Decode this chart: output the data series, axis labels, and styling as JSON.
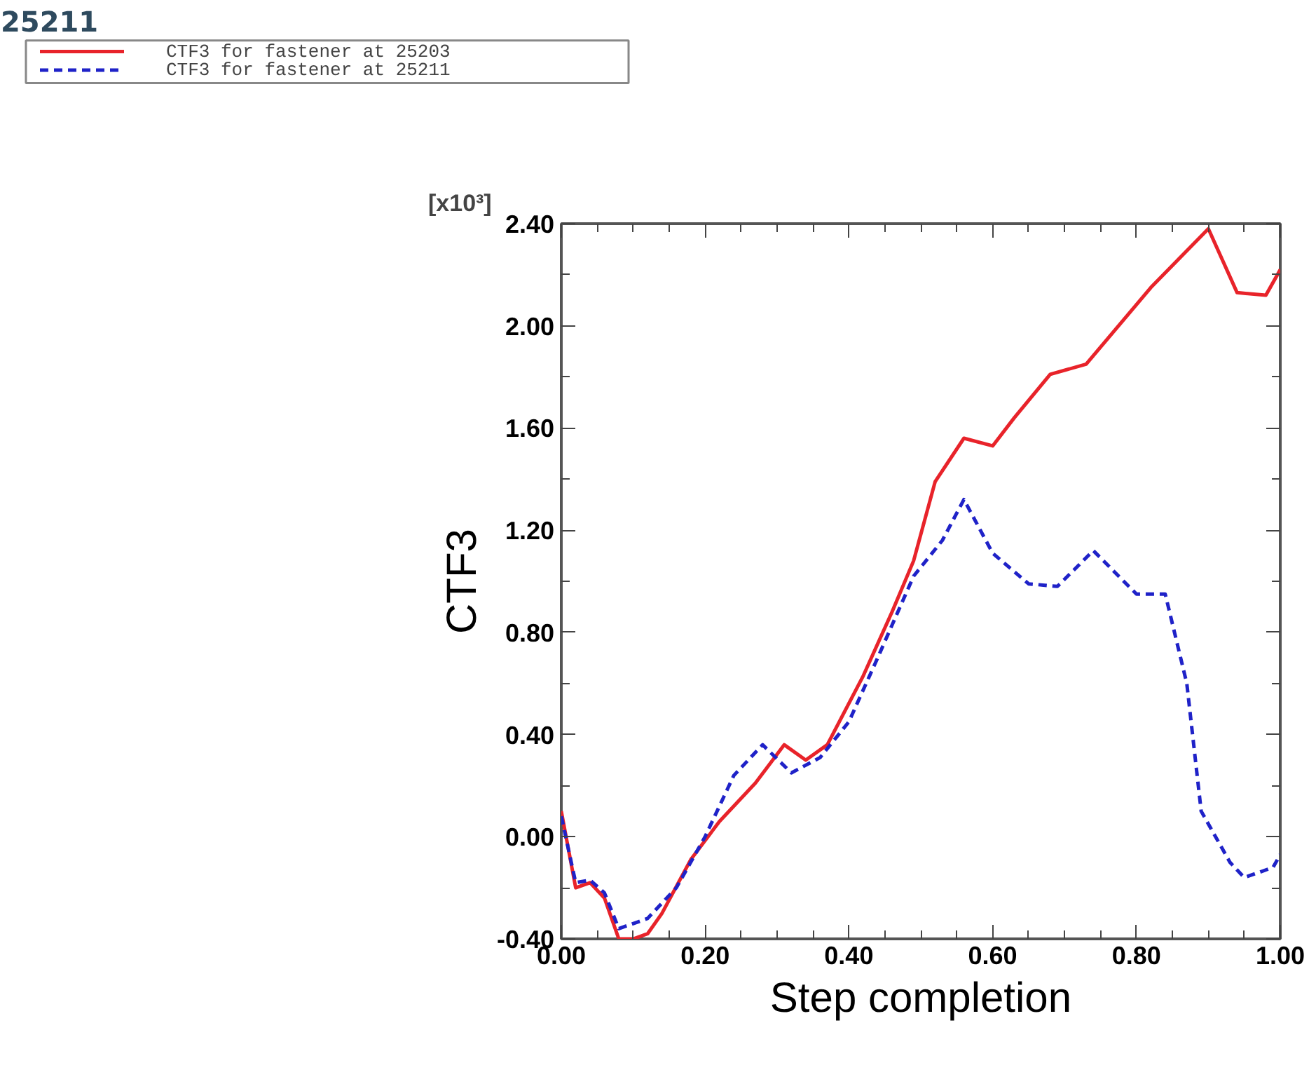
{
  "chart_data": {
    "type": "line",
    "title": "25211",
    "xlabel": "Step completion",
    "ylabel": "CTF3",
    "annotations": [
      "[x10³]"
    ],
    "xlim": [
      0,
      1
    ],
    "xticks": [
      {
        "value": 0,
        "label": "0.00"
      },
      {
        "value": 0.2,
        "label": "0.20"
      },
      {
        "value": 0.4,
        "label": "0.40"
      },
      {
        "value": 0.6,
        "label": "0.60"
      },
      {
        "value": 0.8,
        "label": "0.80"
      },
      {
        "value": 1.0,
        "label": "1.00"
      }
    ],
    "ylim": [
      -0.4,
      2.4
    ],
    "yticks": [
      {
        "value": -0.4,
        "label": "-0.40"
      },
      {
        "value": 0,
        "label": "0.00"
      },
      {
        "value": 0.4,
        "label": "0.40"
      },
      {
        "value": 0.8,
        "label": "0.80"
      },
      {
        "value": 1.2,
        "label": "1.20"
      },
      {
        "value": 1.6,
        "label": "1.60"
      },
      {
        "value": 2.0,
        "label": "2.00"
      },
      {
        "value": 2.4,
        "label": "2.40"
      }
    ],
    "grid": false,
    "legend": "top left",
    "series": [
      {
        "name": "CTF3 for fastener at 25203",
        "color": "#e8232a",
        "line_style": "solid",
        "x": [
          0.0,
          0.02,
          0.04,
          0.06,
          0.08,
          0.1,
          0.12,
          0.14,
          0.18,
          0.22,
          0.27,
          0.31,
          0.34,
          0.37,
          0.42,
          0.46,
          0.49,
          0.52,
          0.56,
          0.6,
          0.63,
          0.68,
          0.73,
          0.82,
          0.9,
          0.94,
          0.98,
          1.0
        ],
        "values": [
          0.1,
          -0.2,
          -0.18,
          -0.24,
          -0.4,
          -0.4,
          -0.38,
          -0.3,
          -0.09,
          0.06,
          0.21,
          0.36,
          0.3,
          0.36,
          0.63,
          0.88,
          1.08,
          1.39,
          1.56,
          1.53,
          1.64,
          1.81,
          1.85,
          2.15,
          2.38,
          2.13,
          2.12,
          2.22
        ]
      },
      {
        "name": "CTF3 for fastener at 25211",
        "color": "#1f22c8",
        "line_style": "dashed",
        "x": [
          0.0,
          0.02,
          0.04,
          0.06,
          0.08,
          0.12,
          0.16,
          0.2,
          0.24,
          0.28,
          0.32,
          0.36,
          0.4,
          0.44,
          0.49,
          0.53,
          0.56,
          0.6,
          0.65,
          0.69,
          0.74,
          0.8,
          0.84,
          0.87,
          0.89,
          0.93,
          0.95,
          0.99,
          1.0
        ],
        "values": [
          0.08,
          -0.18,
          -0.17,
          -0.22,
          -0.36,
          -0.32,
          -0.2,
          0.0,
          0.24,
          0.36,
          0.25,
          0.31,
          0.45,
          0.7,
          1.02,
          1.16,
          1.32,
          1.11,
          0.99,
          0.98,
          1.12,
          0.95,
          0.95,
          0.6,
          0.1,
          -0.1,
          -0.16,
          -0.12,
          -0.07
        ]
      }
    ]
  }
}
